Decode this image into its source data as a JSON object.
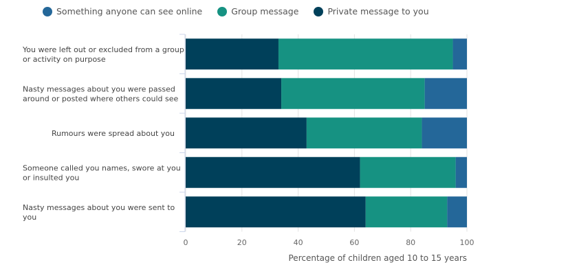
{
  "chart_data": {
    "type": "bar",
    "orientation": "horizontal",
    "stacked": true,
    "categories": [
      [
        "You were left out or excluded from a group",
        "or activity on purpose"
      ],
      [
        "Nasty messages about you were passed",
        "around or posted where others could see"
      ],
      [
        "Rumours were spread about you"
      ],
      [
        "Someone called you names, swore at you",
        "or insulted you"
      ],
      [
        "Nasty messages about you were sent to",
        "you"
      ]
    ],
    "series": [
      {
        "name": "Private message to you",
        "color": "#00405a",
        "values": [
          33,
          34,
          43,
          62,
          64
        ]
      },
      {
        "name": "Group message",
        "color": "#169282",
        "values": [
          62,
          51,
          41,
          34,
          29
        ]
      },
      {
        "name": "Something anyone can see online",
        "color": "#246799",
        "values": [
          5,
          15,
          16,
          4,
          7
        ]
      }
    ],
    "legend_order": [
      "Something anyone can see online",
      "Group message",
      "Private message to you"
    ],
    "legend_placement": "top-left",
    "xlabel": "Percentage of children aged 10 to 15 years",
    "xlim": [
      0,
      100
    ],
    "xticks": [
      0,
      20,
      40,
      60,
      80,
      100
    ],
    "grid": true
  }
}
